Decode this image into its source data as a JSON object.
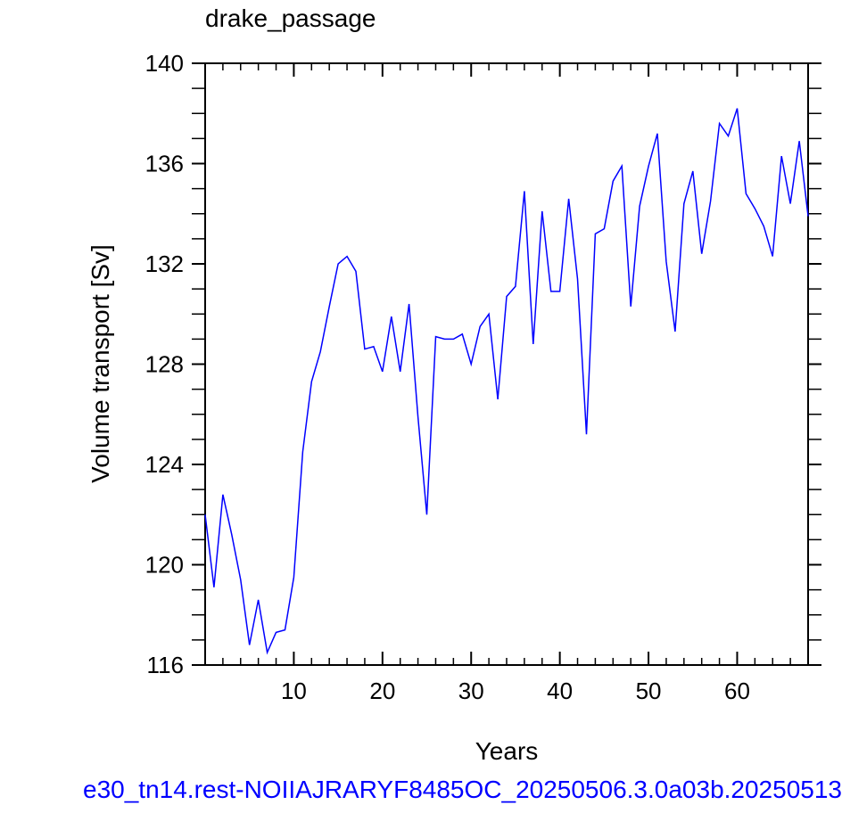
{
  "chart_data": {
    "type": "line",
    "title": "drake_passage",
    "xlabel": "Years",
    "ylabel": "Volume transport [Sv]",
    "xlim": [
      0,
      68
    ],
    "ylim": [
      116,
      140
    ],
    "xticks": [
      10,
      20,
      30,
      40,
      50,
      60
    ],
    "yticks": [
      116,
      120,
      124,
      128,
      132,
      136,
      140
    ],
    "grid": false,
    "series": [
      {
        "color": "#0000ff",
        "x": [
          0,
          1,
          2,
          3,
          4,
          5,
          6,
          7,
          8,
          9,
          10,
          11,
          12,
          13,
          14,
          15,
          16,
          17,
          18,
          19,
          20,
          21,
          22,
          23,
          24,
          25,
          26,
          27,
          28,
          29,
          30,
          31,
          32,
          33,
          34,
          35,
          36,
          37,
          38,
          39,
          40,
          41,
          42,
          43,
          44,
          45,
          46,
          47,
          48,
          49,
          50,
          51,
          52,
          53,
          54,
          55,
          56,
          57,
          58,
          59,
          60,
          61,
          62,
          63,
          64,
          65,
          66,
          67,
          68
        ],
        "values": [
          122.0,
          119.1,
          122.8,
          121.2,
          119.4,
          116.8,
          118.6,
          116.5,
          117.3,
          117.4,
          119.5,
          124.5,
          127.3,
          128.5,
          130.3,
          132.0,
          132.3,
          131.7,
          128.6,
          128.7,
          127.7,
          129.9,
          127.7,
          130.4,
          125.9,
          122.0,
          129.1,
          129.0,
          129.0,
          129.2,
          128.0,
          129.5,
          130.0,
          126.6,
          130.7,
          131.1,
          134.9,
          128.8,
          134.1,
          130.9,
          130.9,
          134.6,
          131.4,
          125.2,
          133.2,
          133.4,
          135.3,
          135.9,
          130.3,
          134.3,
          135.9,
          137.2,
          132.1,
          129.3,
          134.4,
          135.7,
          132.4,
          134.5,
          137.6,
          137.1,
          138.2,
          134.8,
          134.2,
          133.5,
          132.3,
          136.3,
          134.4,
          136.9,
          133.9
        ]
      }
    ]
  },
  "footer": "e30_tn14.rest-NOIIAJRARYF8485OC_20250506.3.0a03b.20250513"
}
